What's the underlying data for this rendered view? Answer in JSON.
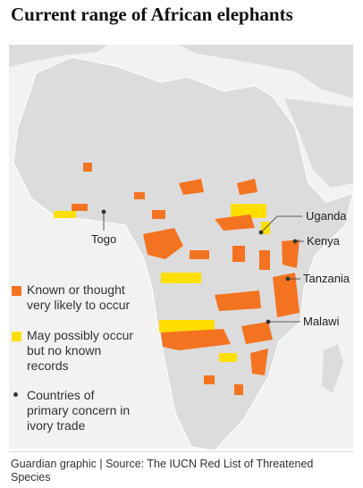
{
  "title": "Current range of African elephants",
  "legend": [
    {
      "label": "Known or thought very likely to occur"
    },
    {
      "label": "May possibly occur but no known records"
    },
    {
      "label": "Countries of primary concern in ivory trade"
    }
  ],
  "labels": [
    "Togo",
    "Uganda",
    "Kenya",
    "Tanzania",
    "Malawi"
  ],
  "source": "Guardian graphic | Source: The IUCN Red List of Threatened Species"
}
